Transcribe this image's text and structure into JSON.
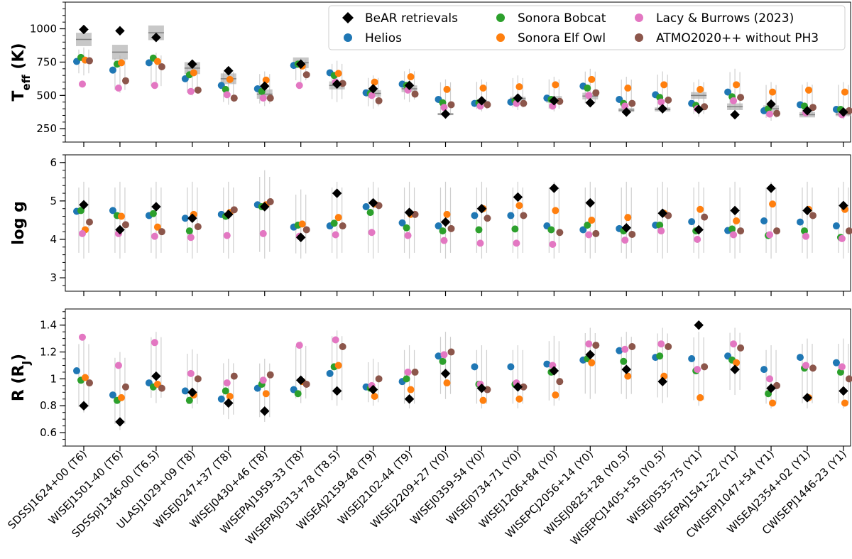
{
  "chart_data": {
    "type": "scatter",
    "objects": [
      "SDSSJ1624+00 (T6)",
      "WISEJ1501-40 (T6)",
      "SDSSpJ1346-00 (T6.5)",
      "ULASJ1029+09 (T8)",
      "WISEJ0247+37 (T8)",
      "WISEJ0430+46 (T8)",
      "WISEPAJ1959-33 (T8)",
      "WISEPAJ0313+78 (T8.5)",
      "WISEAJ2159-48 (T9)",
      "WISEJ2102-44 (T9)",
      "WISEJ2209+27 (Y0)",
      "WISEJ0359-54 (Y0)",
      "WISEJ0734-71 (Y0)",
      "WISEJ1206+84 (Y0)",
      "WISEPCJ2056+14 (Y0)",
      "WISEJ0825+28 (Y0.5)",
      "WISEPCJ1405+55 (Y0.5)",
      "WISEJ0535-75 (Y1)",
      "WISEPAJ1541-22 (Y1)",
      "CWISEPJ1047+54 (Y1)",
      "WISEAJ2354+02 (Y1)",
      "CWISEPJ1446-23 (Y1)"
    ],
    "legend": [
      {
        "name": "BeAR retrievals",
        "marker": "diamond",
        "color": "#000000"
      },
      {
        "name": "Helios",
        "marker": "circle",
        "color": "#1f77b4"
      },
      {
        "name": "Sonora Bobcat",
        "marker": "circle",
        "color": "#2ca02c"
      },
      {
        "name": "Sonora Elf Owl",
        "marker": "circle",
        "color": "#ff7f0e"
      },
      {
        "name": "Lacy & Burrows (2023)",
        "marker": "circle",
        "color": "#e377c2"
      },
      {
        "name": "ATMO2020++ without PH3",
        "marker": "circle",
        "color": "#8c564b"
      }
    ],
    "legend_position": "top-right",
    "panels": [
      {
        "ylabel_main": "T",
        "ylabel_sub": "eff",
        "ylabel_unit": " (K)",
        "ylim": [
          150,
          1200
        ],
        "yticks": [
          250,
          500,
          750,
          1000
        ],
        "ytick_labels": [
          "250",
          "500",
          "750",
          "1000"
        ],
        "minor_step": 50,
        "series": {
          "BeAR retrievals": [
            995,
            985,
            935,
            735,
            685,
            570,
            735,
            585,
            550,
            575,
            360,
            460,
            480,
            460,
            445,
            375,
            400,
            395,
            355,
            435,
            385,
            375
          ],
          "Helios": [
            755,
            690,
            745,
            625,
            575,
            550,
            725,
            670,
            520,
            585,
            470,
            440,
            450,
            480,
            570,
            470,
            505,
            440,
            525,
            385,
            430,
            395
          ],
          "Sonora Bobcat": [
            785,
            735,
            780,
            655,
            545,
            530,
            735,
            650,
            515,
            575,
            445,
            445,
            460,
            470,
            555,
            440,
            485,
            425,
            490,
            400,
            420,
            395
          ],
          "Sonora Elf Owl": [
            765,
            745,
            755,
            670,
            620,
            615,
            720,
            665,
            600,
            640,
            545,
            555,
            565,
            580,
            620,
            555,
            580,
            545,
            580,
            525,
            540,
            525
          ],
          "Lacy & Burrows (2023)": [
            585,
            555,
            575,
            530,
            505,
            480,
            575,
            600,
            500,
            540,
            410,
            420,
            440,
            420,
            500,
            420,
            450,
            400,
            460,
            360,
            370,
            355
          ],
          "ATMO2020++ without PH3": [
            760,
            610,
            715,
            540,
            480,
            480,
            655,
            590,
            460,
            510,
            430,
            430,
            440,
            455,
            520,
            440,
            465,
            415,
            485,
            365,
            410,
            385
          ]
        },
        "band_center": [
          920,
          825,
          970,
          705,
          625,
          510,
          745,
          575,
          515,
          550,
          360,
          450,
          475,
          470,
          495,
          390,
          395,
          500,
          415,
          400,
          355,
          360
        ],
        "band_halfwidth": [
          50,
          55,
          55,
          45,
          40,
          35,
          40,
          30,
          25,
          25,
          8,
          10,
          15,
          25,
          25,
          15,
          15,
          25,
          25,
          25,
          20,
          15
        ],
        "err_low": [
          650,
          520,
          550,
          500,
          430,
          420,
          600,
          450,
          400,
          450,
          330,
          380,
          390,
          380,
          420,
          360,
          360,
          340,
          370,
          310,
          340,
          320
        ],
        "err_high": [
          860,
          800,
          820,
          760,
          700,
          680,
          780,
          760,
          650,
          700,
          620,
          620,
          650,
          640,
          700,
          640,
          680,
          620,
          700,
          600,
          600,
          600
        ]
      },
      {
        "ylabel_main": "log g",
        "ylabel_sub": "",
        "ylabel_unit": "",
        "ylim": [
          2.65,
          6.2
        ],
        "yticks": [
          3,
          4,
          5,
          6
        ],
        "ytick_labels": [
          "3",
          "4",
          "5",
          "6"
        ],
        "minor_step": 0.2,
        "series": {
          "BeAR retrievals": [
            4.9,
            4.25,
            4.85,
            4.55,
            4.65,
            4.85,
            4.05,
            5.2,
            4.95,
            4.7,
            4.45,
            4.8,
            5.1,
            5.33,
            4.95,
            4.3,
            4.68,
            4.25,
            4.75,
            5.33,
            4.75,
            4.88
          ],
          "Helios": [
            4.73,
            4.75,
            4.62,
            4.55,
            4.65,
            4.9,
            4.32,
            4.35,
            4.85,
            4.43,
            4.35,
            4.62,
            4.62,
            4.35,
            4.25,
            4.28,
            4.37,
            4.46,
            4.23,
            4.48,
            4.45,
            4.35
          ],
          "Sonora Bobcat": [
            4.75,
            4.62,
            4.67,
            4.22,
            4.6,
            4.85,
            4.37,
            4.42,
            4.7,
            4.3,
            4.22,
            4.25,
            4.27,
            4.25,
            4.37,
            4.22,
            4.37,
            4.22,
            4.27,
            4.1,
            4.22,
            4.05
          ],
          "Sonora Elf Owl": [
            4.25,
            4.6,
            4.32,
            4.65,
            4.7,
            4.9,
            4.4,
            4.57,
            4.92,
            4.65,
            4.65,
            4.8,
            4.88,
            4.75,
            4.5,
            4.57,
            4.68,
            4.78,
            4.48,
            4.92,
            4.78,
            4.78
          ],
          "Lacy & Burrows (2023)": [
            4.15,
            4.15,
            4.08,
            4.05,
            4.1,
            4.15,
            4.08,
            4.12,
            4.18,
            4.1,
            3.97,
            3.9,
            3.9,
            3.87,
            4.12,
            3.98,
            4.22,
            4.0,
            4.12,
            4.12,
            4.08,
            4.02
          ],
          "ATMO2020++ without PH3": [
            4.45,
            4.38,
            4.2,
            4.33,
            4.77,
            4.98,
            4.25,
            4.35,
            4.88,
            4.65,
            4.28,
            4.55,
            4.62,
            4.18,
            4.15,
            4.13,
            4.62,
            4.58,
            4.22,
            4.22,
            4.62,
            4.22
          ]
        },
        "band_center": [],
        "band_halfwidth": [],
        "err_low": [
          3.5,
          3.5,
          3.5,
          3.5,
          3.5,
          3.5,
          3.5,
          3.5,
          3.5,
          3.5,
          3.5,
          3.5,
          3.5,
          3.5,
          3.5,
          3.5,
          3.5,
          3.5,
          3.5,
          3.5,
          3.5,
          3.5
        ],
        "err_high": [
          5.5,
          5.5,
          5.5,
          5.5,
          5.5,
          5.8,
          5.3,
          5.5,
          5.5,
          5.5,
          5.5,
          5.5,
          5.5,
          5.5,
          5.5,
          5.5,
          5.5,
          5.5,
          5.5,
          5.5,
          5.5,
          5.5
        ]
      },
      {
        "ylabel_main": "R (R",
        "ylabel_sub": "J",
        "ylabel_unit": ")",
        "ylim": [
          0.5,
          1.52
        ],
        "yticks": [
          0.6,
          0.8,
          1.0,
          1.2,
          1.4
        ],
        "ytick_labels": [
          "0.6",
          "0.8",
          "1",
          "1.2",
          "1.4"
        ],
        "minor_step": 0.05,
        "series": {
          "BeAR retrievals": [
            0.8,
            0.68,
            1.02,
            0.9,
            0.82,
            0.76,
            0.99,
            0.91,
            0.92,
            0.85,
            1.04,
            0.93,
            0.94,
            1.06,
            1.18,
            1.07,
            0.98,
            1.4,
            1.07,
            0.93,
            0.86,
            0.91
          ],
          "Helios": [
            1.06,
            0.88,
            0.97,
            0.91,
            0.85,
            0.93,
            0.92,
            1.04,
            0.94,
            0.98,
            1.17,
            1.09,
            1.09,
            1.11,
            1.14,
            1.21,
            1.16,
            1.15,
            1.17,
            1.07,
            1.16,
            1.12
          ],
          "Sonora Bobcat": [
            0.99,
            0.84,
            0.94,
            0.84,
            0.91,
            0.96,
            0.89,
            1.09,
            0.93,
            1.0,
            1.13,
            0.96,
            0.96,
            1.05,
            1.15,
            1.13,
            1.17,
            1.06,
            1.14,
            0.89,
            1.08,
            1.05
          ],
          "Sonora Elf Owl": [
            1.01,
            0.86,
            0.96,
            0.88,
            0.87,
            0.89,
            0.98,
            1.1,
            0.87,
            0.92,
            0.97,
            0.84,
            0.85,
            0.88,
            1.12,
            1.02,
            1.02,
            0.86,
            1.12,
            0.82,
            0.86,
            0.82
          ],
          "Lacy & Burrows (2023)": [
            1.31,
            1.1,
            1.27,
            1.04,
            0.97,
            0.99,
            1.25,
            1.29,
            0.95,
            1.05,
            1.18,
            0.96,
            0.97,
            1.1,
            1.26,
            1.22,
            1.26,
            1.07,
            1.26,
            1.0,
            1.1,
            1.09
          ],
          "ATMO2020++ without PH3": [
            0.97,
            0.94,
            0.93,
            1.0,
            1.02,
            1.03,
            0.96,
            1.24,
            1.0,
            1.05,
            1.2,
            0.92,
            0.94,
            0.98,
            1.25,
            1.24,
            1.24,
            1.09,
            1.23,
            0.95,
            1.08,
            1.0
          ]
        },
        "band_center": [],
        "band_halfwidth": [],
        "err_low": [
          0.75,
          0.62,
          0.82,
          0.78,
          0.7,
          0.68,
          0.82,
          0.8,
          0.8,
          0.78,
          0.85,
          0.78,
          0.78,
          0.8,
          0.85,
          0.85,
          0.82,
          0.8,
          0.88,
          0.78,
          0.78,
          0.78
        ],
        "err_high": [
          1.3,
          1.2,
          1.35,
          1.22,
          1.15,
          1.15,
          1.28,
          1.36,
          1.15,
          1.25,
          1.35,
          1.25,
          1.25,
          1.32,
          1.38,
          1.35,
          1.38,
          1.35,
          1.38,
          1.25,
          1.3,
          1.3
        ]
      }
    ]
  }
}
